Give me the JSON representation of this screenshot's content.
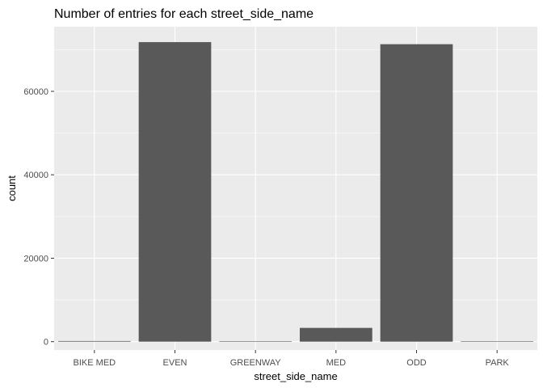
{
  "chart_data": {
    "type": "bar",
    "title": "Number of entries for each street_side_name",
    "xlabel": "street_side_name",
    "ylabel": "count",
    "categories": [
      "BIKE MED",
      "EVEN",
      "GREENWAY",
      "MED",
      "ODD",
      "PARK"
    ],
    "values": [
      150,
      71800,
      10,
      3300,
      71300,
      120
    ],
    "ylim": [
      -2000,
      75500
    ],
    "yticks": [
      0,
      20000,
      40000,
      60000
    ],
    "ytick_labels": [
      "0",
      "20000",
      "40000",
      "60000"
    ],
    "grid": true,
    "colors": {
      "panel": "#EBEBEB",
      "grid_major": "#FFFFFF",
      "bar": "#595959",
      "tick_text": "#4D4D4D",
      "tick_mark": "#333333"
    }
  }
}
